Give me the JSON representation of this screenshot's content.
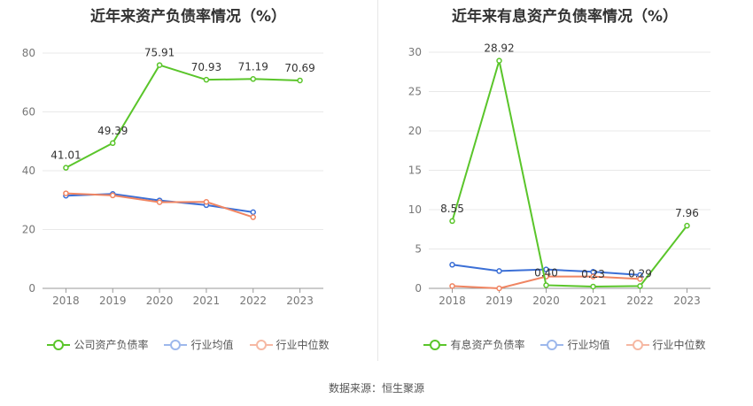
{
  "source_text": "数据来源：恒生聚源",
  "chart_data": [
    {
      "type": "line",
      "title": "近年来资产负债率情况（%）",
      "categories": [
        "2018",
        "2019",
        "2020",
        "2021",
        "2022",
        "2023"
      ],
      "ylim": [
        0,
        80
      ],
      "yticks": [
        0,
        20,
        40,
        60,
        80
      ],
      "grid": true,
      "legend_position": "bottom",
      "series": [
        {
          "name": "公司资产负债率",
          "color": "#5ac52a",
          "values": [
            41.01,
            49.39,
            75.91,
            70.93,
            71.19,
            70.69
          ],
          "labels": [
            "41.01",
            "49.39",
            "75.91",
            "70.93",
            "71.19",
            "70.69"
          ]
        },
        {
          "name": "行业均值",
          "color": "#3b6fd6",
          "values": [
            31.5,
            32.1,
            29.9,
            28.3,
            25.9,
            null
          ]
        },
        {
          "name": "行业中位数",
          "color": "#f08562",
          "values": [
            32.3,
            31.6,
            29.3,
            29.4,
            24.2,
            null
          ]
        }
      ]
    },
    {
      "type": "line",
      "title": "近年来有息资产负债率情况（%）",
      "categories": [
        "2018",
        "2019",
        "2020",
        "2021",
        "2022",
        "2023"
      ],
      "ylim": [
        0,
        30
      ],
      "yticks": [
        0,
        5,
        10,
        15,
        20,
        25,
        30
      ],
      "grid": true,
      "legend_position": "bottom",
      "series": [
        {
          "name": "有息资产负债率",
          "color": "#5ac52a",
          "values": [
            8.55,
            28.92,
            0.4,
            0.23,
            0.29,
            7.96
          ],
          "labels": [
            "8.55",
            "28.92",
            "0.40",
            "0.23",
            "0.29",
            "7.96"
          ]
        },
        {
          "name": "行业均值",
          "color": "#3b6fd6",
          "values": [
            3.0,
            2.2,
            2.4,
            2.1,
            1.7,
            null
          ]
        },
        {
          "name": "行业中位数",
          "color": "#f08562",
          "values": [
            0.3,
            0.0,
            1.5,
            1.5,
            1.2,
            null
          ]
        }
      ]
    }
  ]
}
